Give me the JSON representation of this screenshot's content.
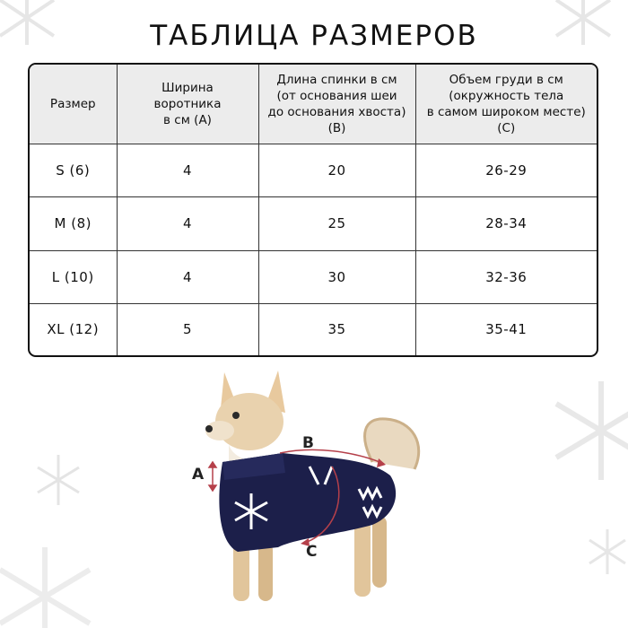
{
  "title": "ТАБЛИЦА РАЗМЕРОВ",
  "table": {
    "headers": [
      [
        "Размер"
      ],
      [
        "Ширина",
        "воротника",
        "в см (А)"
      ],
      [
        "Длина спинки в см",
        "(от основания шеи",
        "до основания хвоста)",
        "(В)"
      ],
      [
        "Объем груди в см",
        "(окружность тела",
        "в самом широком месте)",
        "(С)"
      ]
    ],
    "rows": [
      [
        "S (6)",
        "4",
        "20",
        "26-29"
      ],
      [
        "M (8)",
        "4",
        "25",
        "28-34"
      ],
      [
        "L (10)",
        "4",
        "30",
        "32-36"
      ],
      [
        "XL (12)",
        "5",
        "35",
        "35-41"
      ]
    ]
  },
  "diagram": {
    "label_a": "A",
    "label_b": "B",
    "label_c": "C",
    "arrow_color": "#b5404a",
    "sweater_color": "#1c1f4a"
  }
}
